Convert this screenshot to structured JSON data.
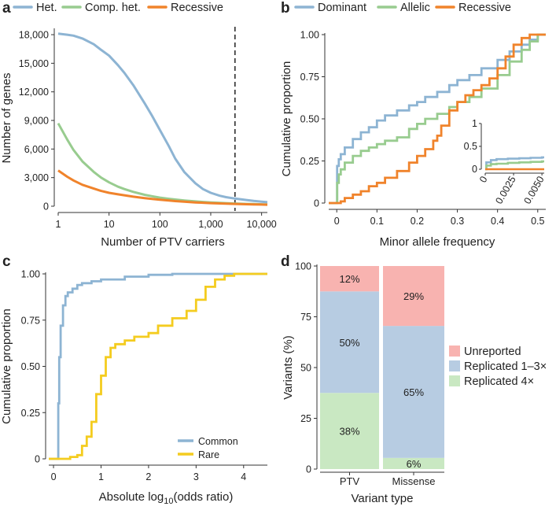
{
  "chart_data": [
    {
      "panel": "a",
      "type": "line",
      "x_scale": "log",
      "xlabel": "Number of PTV carriers",
      "ylabel": "Number of genes",
      "xlim": [
        1,
        13000
      ],
      "ylim": [
        0,
        18500
      ],
      "x_ticks": [
        1,
        10,
        100,
        1000,
        10000
      ],
      "x_tick_labels": [
        "1",
        "10",
        "100",
        "1,000",
        "10,000"
      ],
      "y_ticks": [
        0,
        3000,
        6000,
        9000,
        12000,
        15000,
        18000
      ],
      "y_tick_labels": [
        "0",
        "3,000",
        "6,000",
        "9,000",
        "12,000",
        "15,000",
        "18,000"
      ],
      "legend": [
        "Het.",
        "Comp. het.",
        "Recessive"
      ],
      "vline": 3000,
      "series": [
        {
          "name": "Het.",
          "color": "#8db4d3",
          "x": [
            1,
            1.5,
            2,
            3,
            5,
            7,
            10,
            15,
            20,
            30,
            50,
            70,
            100,
            150,
            200,
            300,
            500,
            700,
            1000,
            1500,
            2000,
            3000,
            5000,
            7000,
            10000,
            13000
          ],
          "y": [
            18100,
            18000,
            17900,
            17600,
            17000,
            16400,
            15800,
            14800,
            14000,
            12700,
            10800,
            9500,
            8000,
            6300,
            5000,
            3600,
            2400,
            1800,
            1400,
            1100,
            950,
            800,
            650,
            550,
            470,
            420
          ]
        },
        {
          "name": "Comp. het.",
          "color": "#98cc8f",
          "x": [
            1,
            1.5,
            2,
            3,
            5,
            7,
            10,
            15,
            20,
            30,
            50,
            70,
            100,
            150,
            200,
            300,
            500,
            700,
            1000,
            1500,
            2000,
            3000,
            5000,
            7000,
            10000,
            13000
          ],
          "y": [
            8700,
            7000,
            5900,
            4700,
            3600,
            3000,
            2500,
            2050,
            1800,
            1500,
            1200,
            1050,
            900,
            780,
            700,
            600,
            500,
            450,
            400,
            350,
            320,
            280,
            240,
            220,
            200,
            180
          ]
        },
        {
          "name": "Recessive",
          "color": "#f0832b",
          "x": [
            1,
            1.5,
            2,
            3,
            5,
            7,
            10,
            15,
            20,
            30,
            50,
            70,
            100,
            150,
            200,
            300,
            500,
            700,
            1000,
            1500,
            2000,
            3000,
            5000,
            7000,
            10000,
            13000
          ],
          "y": [
            3750,
            3100,
            2700,
            2250,
            1850,
            1600,
            1400,
            1250,
            1150,
            1000,
            850,
            760,
            680,
            600,
            540,
            470,
            400,
            360,
            320,
            290,
            270,
            240,
            210,
            190,
            170,
            160
          ]
        }
      ]
    },
    {
      "panel": "b",
      "type": "line",
      "xlabel": "Minor allele frequency",
      "ylabel": "Cumulative proportion",
      "xlim": [
        -0.02,
        0.52
      ],
      "ylim": [
        0,
        1
      ],
      "x_ticks": [
        0,
        0.1,
        0.2,
        0.3,
        0.4,
        0.5
      ],
      "x_tick_labels": [
        "0",
        "0.1",
        "0.2",
        "0.3",
        "0.4",
        "0.5"
      ],
      "y_ticks": [
        0,
        0.25,
        0.5,
        0.75,
        1
      ],
      "y_tick_labels": [
        "0",
        "0.25",
        "0.50",
        "0.75",
        "1.00"
      ],
      "legend": [
        "Dominant",
        "Allelic",
        "Recessive"
      ],
      "series": [
        {
          "name": "Dominant",
          "color": "#8db4d3",
          "x": [
            -0.02,
            0,
            0.001,
            0.005,
            0.01,
            0.02,
            0.04,
            0.06,
            0.08,
            0.1,
            0.12,
            0.15,
            0.18,
            0.2,
            0.22,
            0.25,
            0.28,
            0.3,
            0.33,
            0.36,
            0.4,
            0.43,
            0.46,
            0.48,
            0.5,
            0.52
          ],
          "y": [
            0,
            0,
            0.22,
            0.26,
            0.29,
            0.33,
            0.38,
            0.42,
            0.45,
            0.49,
            0.52,
            0.55,
            0.58,
            0.6,
            0.63,
            0.66,
            0.7,
            0.73,
            0.76,
            0.8,
            0.85,
            0.9,
            0.94,
            0.97,
            1.0,
            1.0
          ]
        },
        {
          "name": "Allelic",
          "color": "#98cc8f",
          "x": [
            -0.02,
            0,
            0.001,
            0.005,
            0.01,
            0.02,
            0.04,
            0.06,
            0.08,
            0.1,
            0.12,
            0.15,
            0.18,
            0.2,
            0.22,
            0.25,
            0.28,
            0.3,
            0.33,
            0.36,
            0.4,
            0.43,
            0.46,
            0.48,
            0.5,
            0.52
          ],
          "y": [
            0,
            0,
            0.12,
            0.17,
            0.2,
            0.24,
            0.28,
            0.31,
            0.33,
            0.35,
            0.37,
            0.39,
            0.44,
            0.47,
            0.5,
            0.53,
            0.57,
            0.6,
            0.63,
            0.68,
            0.76,
            0.84,
            0.91,
            0.96,
            1.0,
            1.0
          ]
        },
        {
          "name": "Recessive",
          "color": "#f0832b",
          "x": [
            -0.02,
            0,
            0.01,
            0.02,
            0.04,
            0.06,
            0.08,
            0.1,
            0.12,
            0.15,
            0.18,
            0.2,
            0.22,
            0.24,
            0.25,
            0.26,
            0.28,
            0.3,
            0.32,
            0.34,
            0.36,
            0.38,
            0.4,
            0.42,
            0.44,
            0.46,
            0.48,
            0.5,
            0.52
          ],
          "y": [
            0,
            0,
            0.01,
            0.03,
            0.05,
            0.07,
            0.1,
            0.12,
            0.15,
            0.19,
            0.24,
            0.28,
            0.32,
            0.37,
            0.4,
            0.46,
            0.55,
            0.6,
            0.64,
            0.67,
            0.7,
            0.74,
            0.8,
            0.87,
            0.94,
            0.98,
            1.0,
            1.0,
            1.0
          ]
        }
      ],
      "inset": {
        "xlim": [
          0,
          0.0052
        ],
        "ylim": [
          0,
          1.05
        ],
        "x_ticks": [
          0,
          0.0025,
          0.005
        ],
        "x_tick_labels": [
          "0",
          "0.0025",
          "0.0050"
        ],
        "y_ticks": [
          0,
          0.5,
          1
        ],
        "y_tick_labels": [
          "0",
          "0.5",
          "1"
        ],
        "series": [
          {
            "name": "Dominant",
            "color": "#8db4d3",
            "x": [
              0,
              0.0001,
              0.0005,
              0.001,
              0.002,
              0.003,
              0.004,
              0.005,
              0.0052
            ],
            "y": [
              0,
              0.15,
              0.2,
              0.22,
              0.23,
              0.24,
              0.25,
              0.26,
              0.26
            ]
          },
          {
            "name": "Allelic",
            "color": "#98cc8f",
            "x": [
              0,
              0.0001,
              0.0005,
              0.001,
              0.002,
              0.003,
              0.004,
              0.005,
              0.0052
            ],
            "y": [
              0,
              0.08,
              0.11,
              0.12,
              0.14,
              0.15,
              0.16,
              0.17,
              0.17
            ]
          },
          {
            "name": "Recessive",
            "color": "#f0832b",
            "x": [
              0,
              0.0052
            ],
            "y": [
              0,
              0
            ]
          }
        ]
      }
    },
    {
      "panel": "c",
      "type": "line",
      "xlabel": "Absolute log",
      "xlabel_sub": "10",
      "xlabel_tail": "(odds ratio)",
      "ylabel": "Cumulative proportion",
      "xlim": [
        -0.1,
        4.5
      ],
      "ylim": [
        0,
        1
      ],
      "x_ticks": [
        0,
        1,
        2,
        3,
        4
      ],
      "x_tick_labels": [
        "0",
        "1",
        "2",
        "3",
        "4"
      ],
      "y_ticks": [
        0,
        0.25,
        0.5,
        0.75,
        1
      ],
      "y_tick_labels": [
        "0",
        "0.25",
        "0.50",
        "0.75",
        "1.00"
      ],
      "legend": [
        "Common",
        "Rare"
      ],
      "series": [
        {
          "name": "Common",
          "color": "#8db4d3",
          "x": [
            -0.1,
            0.08,
            0.1,
            0.12,
            0.15,
            0.2,
            0.25,
            0.3,
            0.4,
            0.5,
            0.6,
            0.8,
            1.0,
            1.5,
            2.0,
            2.5,
            3.0,
            3.5,
            4.0,
            4.5
          ],
          "y": [
            0,
            0,
            0.3,
            0.55,
            0.72,
            0.83,
            0.88,
            0.9,
            0.92,
            0.94,
            0.95,
            0.96,
            0.97,
            0.985,
            0.995,
            1.0,
            1.0,
            1.0,
            1.0,
            1.0
          ]
        },
        {
          "name": "Rare",
          "color": "#f4cc1f",
          "x": [
            -0.1,
            0.3,
            0.35,
            0.5,
            0.6,
            0.7,
            0.8,
            0.9,
            1.0,
            1.1,
            1.2,
            1.3,
            1.5,
            1.7,
            2.0,
            2.2,
            2.5,
            2.8,
            3.0,
            3.2,
            3.4,
            3.6,
            3.8,
            4.0,
            4.5
          ],
          "y": [
            0,
            0,
            0.01,
            0.02,
            0.07,
            0.12,
            0.2,
            0.35,
            0.45,
            0.55,
            0.6,
            0.62,
            0.64,
            0.66,
            0.68,
            0.72,
            0.76,
            0.8,
            0.86,
            0.93,
            0.97,
            0.99,
            1.0,
            1.0,
            1.0
          ]
        }
      ]
    },
    {
      "panel": "d",
      "type": "bar",
      "stacked": true,
      "xlabel": "Variant type",
      "ylabel": "Variants (%)",
      "categories": [
        "PTV",
        "Missense"
      ],
      "ylim": [
        0,
        100
      ],
      "y_ticks": [
        0,
        25,
        50,
        75,
        100
      ],
      "y_tick_labels": [
        "0",
        "25",
        "50",
        "75",
        "100"
      ],
      "legend": [
        "Unreported",
        "Replicated 1–3×",
        "Replicated 4×"
      ],
      "series": [
        {
          "name": "Replicated 4×",
          "color": "#c9e8c2",
          "values": [
            37.5,
            5.5
          ],
          "labels": [
            "38%",
            "6%"
          ]
        },
        {
          "name": "Replicated 1–3×",
          "color": "#b7cce2",
          "values": [
            50,
            65
          ],
          "labels": [
            "50%",
            "65%"
          ]
        },
        {
          "name": "Unreported",
          "color": "#f8b3b0",
          "values": [
            12.5,
            29.5
          ],
          "labels": [
            "12%",
            "29%"
          ]
        }
      ]
    }
  ]
}
